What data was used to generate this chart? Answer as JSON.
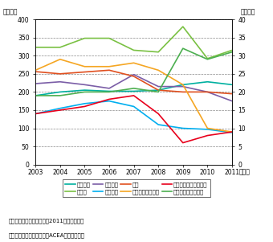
{
  "years": [
    2003,
    2004,
    2005,
    2006,
    2007,
    2008,
    2009,
    2010,
    2011
  ],
  "france": [
    190,
    200,
    205,
    202,
    202,
    205,
    220,
    228,
    220
  ],
  "germany": [
    323,
    323,
    348,
    348,
    315,
    310,
    380,
    292,
    315
  ],
  "italy": [
    223,
    228,
    220,
    210,
    248,
    215,
    215,
    200,
    175
  ],
  "spain": [
    140,
    155,
    168,
    175,
    160,
    110,
    100,
    97,
    88
  ],
  "uk": [
    256,
    250,
    255,
    260,
    243,
    205,
    200,
    200,
    195
  ],
  "greece_r": [
    26,
    29,
    27,
    27,
    28,
    26,
    22,
    10,
    9
  ],
  "ireland_r": [
    14,
    15,
    16,
    18,
    19,
    14,
    6,
    8,
    9
  ],
  "portugal_r": [
    19,
    19,
    20,
    20,
    21,
    20,
    32,
    29,
    31
  ],
  "label_france": "フランス",
  "label_germany": "ドイツ",
  "label_italy": "イタリア",
  "label_spain": "スペイン",
  "label_uk": "英国",
  "label_greece": "ギリシャ（左軸）",
  "label_ireland": "アイルランド（左軸）",
  "label_portugal": "ポルトガル（左軸）",
  "color_france": "#00b0a0",
  "color_germany": "#7ac143",
  "color_italy": "#7b5ea7",
  "color_spain": "#00aeef",
  "color_uk": "#e05020",
  "color_greece": "#f5a623",
  "color_ireland": "#e8001c",
  "color_portugal": "#4caf50",
  "ylabel_left": "（万台）",
  "ylabel_right": "（万台）",
  "xlabel": "（年）",
  "ylim_left": [
    0,
    400
  ],
  "ylim_right": [
    0,
    40
  ],
  "yticks_left": [
    0,
    50,
    100,
    150,
    200,
    250,
    300,
    350,
    400
  ],
  "yticks_right": [
    0,
    5,
    10,
    15,
    20,
    25,
    30,
    35,
    40
  ],
  "note1": "備考：乗用車の登録台数。2011年は速報値。",
  "note2": "資料：欧州自動車工業会（ACEA）から作成。"
}
